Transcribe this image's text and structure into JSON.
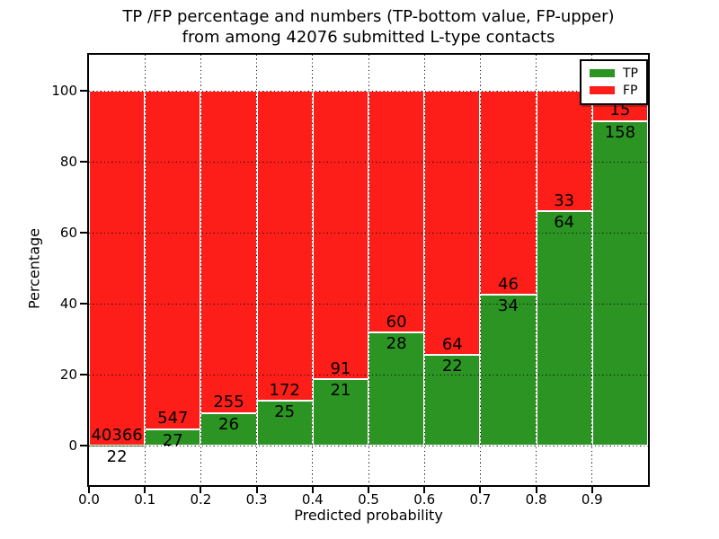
{
  "chart_data": {
    "type": "bar",
    "variant": "stacked-percentage-histogram",
    "title_line1": "TP /FP percentage and numbers (TP-bottom value, FP-upper)",
    "title_line2": "from among 42076 submitted L-type contacts",
    "total_submitted_contacts": 42076,
    "xlabel": "Predicted probability",
    "ylabel": "Percentage",
    "xlim": [
      0.0,
      1.0
    ],
    "ylim": [
      -11,
      110
    ],
    "xticks": [
      "0.0",
      "0.1",
      "0.2",
      "0.3",
      "0.4",
      "0.5",
      "0.6",
      "0.7",
      "0.8",
      "0.9"
    ],
    "yticks": [
      0,
      20,
      40,
      60,
      80,
      100
    ],
    "grid": "dotted, both axes, drawn over bars",
    "colors": {
      "tp": "#2b9423",
      "fp": "#fe1e19",
      "bar_edge": "#ffffff",
      "text": "#000000"
    },
    "legend": {
      "position": "upper right",
      "entries": [
        {
          "label": "TP",
          "color": "#2b9423"
        },
        {
          "label": "FP",
          "color": "#fe1e19"
        }
      ]
    },
    "bins": [
      {
        "range": [
          0.0,
          0.1
        ],
        "tp": 22,
        "fp": 40366,
        "tp_pct": 0.05
      },
      {
        "range": [
          0.1,
          0.2
        ],
        "tp": 27,
        "fp": 547,
        "tp_pct": 4.7
      },
      {
        "range": [
          0.2,
          0.3
        ],
        "tp": 26,
        "fp": 255,
        "tp_pct": 9.25
      },
      {
        "range": [
          0.3,
          0.4
        ],
        "tp": 25,
        "fp": 172,
        "tp_pct": 12.69
      },
      {
        "range": [
          0.4,
          0.5
        ],
        "tp": 21,
        "fp": 91,
        "tp_pct": 18.75
      },
      {
        "range": [
          0.5,
          0.6
        ],
        "tp": 28,
        "fp": 60,
        "tp_pct": 31.82
      },
      {
        "range": [
          0.6,
          0.7
        ],
        "tp": 22,
        "fp": 64,
        "tp_pct": 25.58
      },
      {
        "range": [
          0.7,
          0.8
        ],
        "tp": 34,
        "fp": 46,
        "tp_pct": 42.5
      },
      {
        "range": [
          0.8,
          0.9
        ],
        "tp": 64,
        "fp": 33,
        "tp_pct": 65.98
      },
      {
        "range": [
          0.9,
          1.0
        ],
        "tp": 158,
        "fp": 15,
        "tp_pct": 91.33
      }
    ]
  }
}
